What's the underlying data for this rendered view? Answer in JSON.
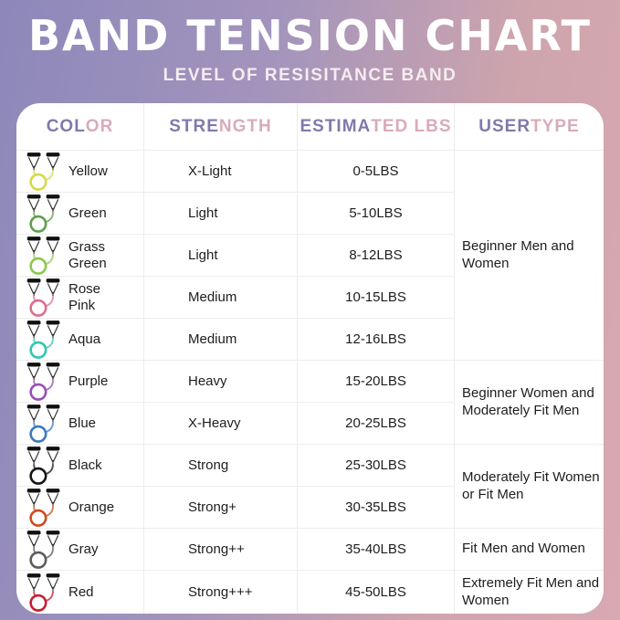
{
  "chart_data": {
    "type": "table",
    "title": "BAND TENSION CHART",
    "subtitle": "LEVEL OF RESISITANCE BAND",
    "columns": [
      "COLOR",
      "STRENGTH",
      "ESTIMATED LBS",
      "USER TYPE"
    ],
    "header_parts": [
      {
        "a": "COL",
        "b": "OR"
      },
      {
        "a": "STRE",
        "b": "NGTH"
      },
      {
        "a": "ESTIMA",
        "b": "TED LBS"
      },
      {
        "a": "USER ",
        "b": "TYPE"
      }
    ],
    "header_colors": {
      "purple": "#7f7aab",
      "pink": "#d9abb9"
    },
    "rows": [
      {
        "color": "Yellow",
        "band_hex": "#d6d84b",
        "strength": "X-Light",
        "lbs": "0-5LBS"
      },
      {
        "color": "Green",
        "band_hex": "#619f4b",
        "strength": "Light",
        "lbs": "5-10LBS"
      },
      {
        "color": "Grass Green",
        "band_hex": "#8cc84e",
        "strength": "Light",
        "lbs": "8-12LBS"
      },
      {
        "color": "Rose Pink",
        "band_hex": "#dd6e8f",
        "strength": "Medium",
        "lbs": "10-15LBS"
      },
      {
        "color": "Aqua",
        "band_hex": "#2fc7b4",
        "strength": "Medium",
        "lbs": "12-16LBS"
      },
      {
        "color": "Purple",
        "band_hex": "#9550b6",
        "strength": "Heavy",
        "lbs": "15-20LBS"
      },
      {
        "color": "Blue",
        "band_hex": "#3c79bd",
        "strength": "X-Heavy",
        "lbs": "20-25LBS"
      },
      {
        "color": "Black",
        "band_hex": "#161616",
        "strength": "Strong",
        "lbs": "25-30LBS"
      },
      {
        "color": "Orange",
        "band_hex": "#cd4d20",
        "strength": "Strong+",
        "lbs": "30-35LBS"
      },
      {
        "color": "Gray",
        "band_hex": "#5c5c5c",
        "strength": "Strong++",
        "lbs": "35-40LBS"
      },
      {
        "color": "Red",
        "band_hex": "#c4202f",
        "strength": "Strong+++",
        "lbs": "45-50LBS"
      }
    ],
    "user_type_groups": [
      {
        "label": "Beginner Men and Women",
        "span": 5
      },
      {
        "label": "Beginner Women and Moderately Fit Men",
        "span": 2
      },
      {
        "label": "Moderately Fit Women or Fit Men",
        "span": 2
      },
      {
        "label": "Fit Men and Women",
        "span": 1
      },
      {
        "label": "Extremely Fit Men and Women",
        "span": 1
      }
    ],
    "background": {
      "left_hex": "#8d88ba",
      "right_hex": "#d9a9b2"
    }
  }
}
